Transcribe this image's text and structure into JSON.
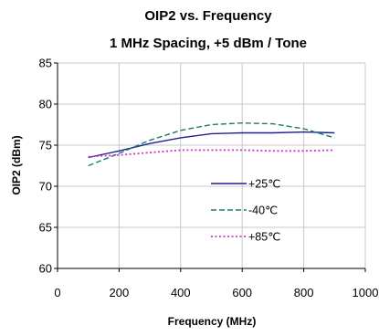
{
  "chart_data": {
    "type": "line",
    "title": "OIP2 vs. Frequency",
    "subtitle": "1 MHz Spacing, +5 dBm / Tone",
    "xlabel": "Frequency (MHz)",
    "ylabel": "OIP2 (dBm)",
    "xlim": [
      0,
      1000
    ],
    "ylim": [
      60,
      85
    ],
    "xticks": [
      0,
      200,
      400,
      600,
      800,
      1000
    ],
    "yticks": [
      60,
      65,
      70,
      75,
      80,
      85
    ],
    "grid": true,
    "legend_position": "right",
    "series": [
      {
        "name": "+25℃",
        "color": "#1f1f8f",
        "dash": "solid",
        "x": [
          100,
          200,
          300,
          400,
          500,
          600,
          700,
          800,
          900
        ],
        "y": [
          73.5,
          74.3,
          75.2,
          75.9,
          76.4,
          76.5,
          76.5,
          76.6,
          76.5
        ]
      },
      {
        "name": "-40℃",
        "color": "#1a7a73",
        "dash": "dashed",
        "x": [
          100,
          200,
          300,
          400,
          500,
          600,
          700,
          800,
          900
        ],
        "y": [
          72.5,
          74.0,
          75.6,
          76.8,
          77.5,
          77.7,
          77.6,
          77.0,
          75.9
        ]
      },
      {
        "name": "+85℃",
        "color": "#cc33cc",
        "dash": "dotted",
        "x": [
          100,
          200,
          300,
          400,
          500,
          600,
          700,
          800,
          900
        ],
        "y": [
          73.6,
          73.8,
          74.1,
          74.4,
          74.4,
          74.4,
          74.3,
          74.3,
          74.4
        ]
      }
    ]
  }
}
